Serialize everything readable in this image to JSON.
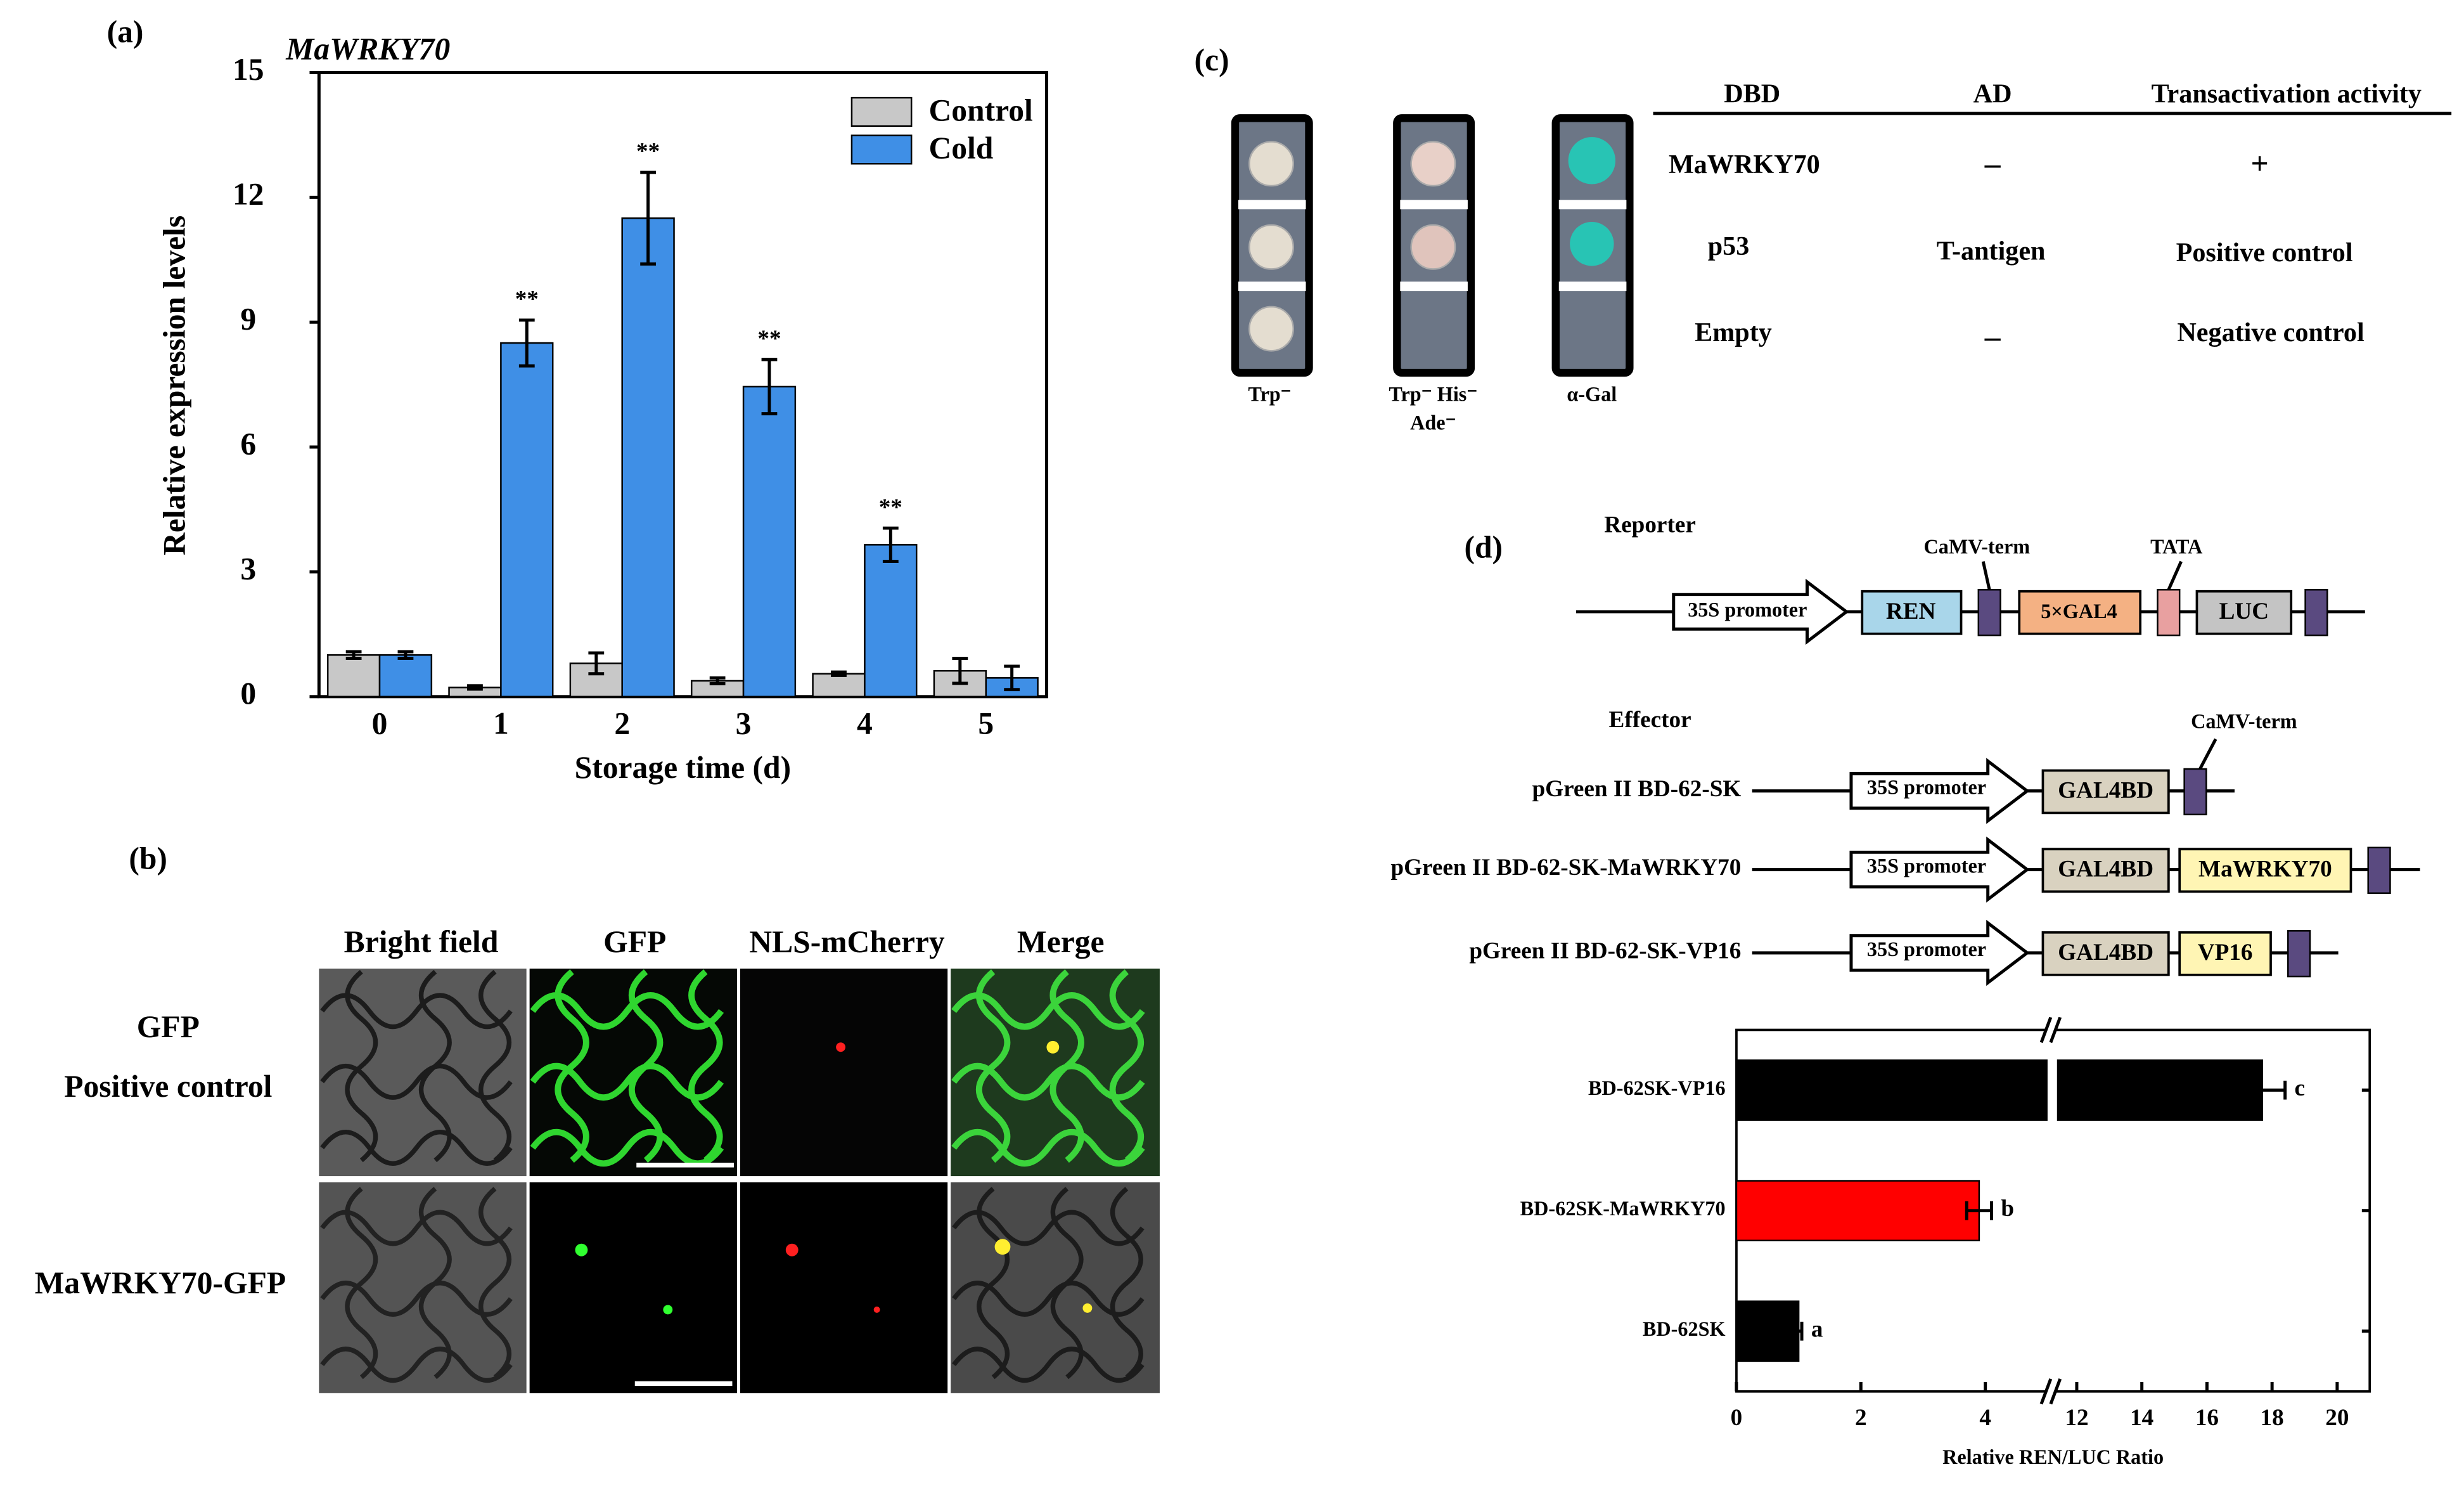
{
  "chart_data": [
    {
      "type": "bar",
      "panel_label": "(a)",
      "title": "MaWRKY70",
      "xlabel": "Storage time (d)",
      "ylabel": "Relative expression levels",
      "categories": [
        "0",
        "1",
        "2",
        "3",
        "4",
        "5"
      ],
      "series": [
        {
          "name": "Control",
          "color": "#c8c8c8",
          "values": [
            1.0,
            0.22,
            0.8,
            0.38,
            0.55,
            0.62
          ],
          "errors": [
            0.08,
            0.04,
            0.25,
            0.07,
            0.04,
            0.3
          ]
        },
        {
          "name": "Cold",
          "color": "#3f8fe6",
          "values": [
            1.0,
            8.5,
            11.5,
            7.45,
            3.65,
            0.45
          ],
          "errors": [
            0.08,
            0.55,
            1.1,
            0.65,
            0.4,
            0.28
          ],
          "annotations": [
            null,
            "**",
            "**",
            "**",
            "**",
            null
          ]
        }
      ],
      "ylim": [
        0,
        15
      ],
      "yticks": [
        0,
        3,
        6,
        9,
        12,
        15
      ],
      "legend": "upper right"
    },
    {
      "type": "barh",
      "xlabel": "Relative REN/LUC Ratio",
      "categories": [
        "BD-62SK-VP16",
        "BD-62SK-MaWRKY70",
        "BD-62SK"
      ],
      "values": [
        17.7,
        3.9,
        1.0
      ],
      "errors": [
        0.7,
        0.2,
        0.05
      ],
      "colors": [
        "#000000",
        "#ff0000",
        "#000000"
      ],
      "letters": [
        "c",
        "b",
        "a"
      ],
      "xlim": [
        0,
        21
      ],
      "xbreak": [
        5,
        11.2
      ],
      "xticks": [
        0,
        2,
        4,
        12,
        14,
        16,
        18,
        20
      ]
    }
  ],
  "panel_b": {
    "label": "(b)",
    "columns": [
      "Bright field",
      "GFP",
      "NLS-mCherry",
      "Merge"
    ],
    "rows": [
      [
        "GFP",
        "Positive control"
      ],
      [
        "MaWRKY70-GFP"
      ]
    ]
  },
  "panel_c": {
    "label": "(c)",
    "plates": [
      [
        "Trp⁻"
      ],
      [
        "Trp⁻ His⁻",
        "Ade⁻"
      ],
      [
        "α-Gal"
      ]
    ],
    "table": {
      "header": [
        "DBD",
        "AD",
        "Transactivation activity"
      ],
      "rows": [
        [
          "MaWRKY70",
          "–",
          "+"
        ],
        [
          "p53",
          "T-antigen",
          "Positive control"
        ],
        [
          "Empty",
          "–",
          "Negative control"
        ]
      ]
    }
  },
  "panel_d": {
    "label": "(d)",
    "reporter": {
      "title": "Reporter",
      "promoter": "35S promoter",
      "ren": "REN",
      "term": "CaMV-term",
      "gal4": "5×GAL4",
      "tata": "TATA",
      "luc": "LUC"
    },
    "effector": {
      "title": "Effector",
      "term": "CaMV-term",
      "promoter": "35S promoter",
      "bd": "GAL4BD",
      "constructs": [
        "pGreen II BD-62-SK",
        "pGreen II BD-62-SK-MaWRKY70",
        "pGreen II BD-62-SK-VP16"
      ],
      "inserts": [
        "MaWRKY70",
        "VP16"
      ]
    }
  }
}
